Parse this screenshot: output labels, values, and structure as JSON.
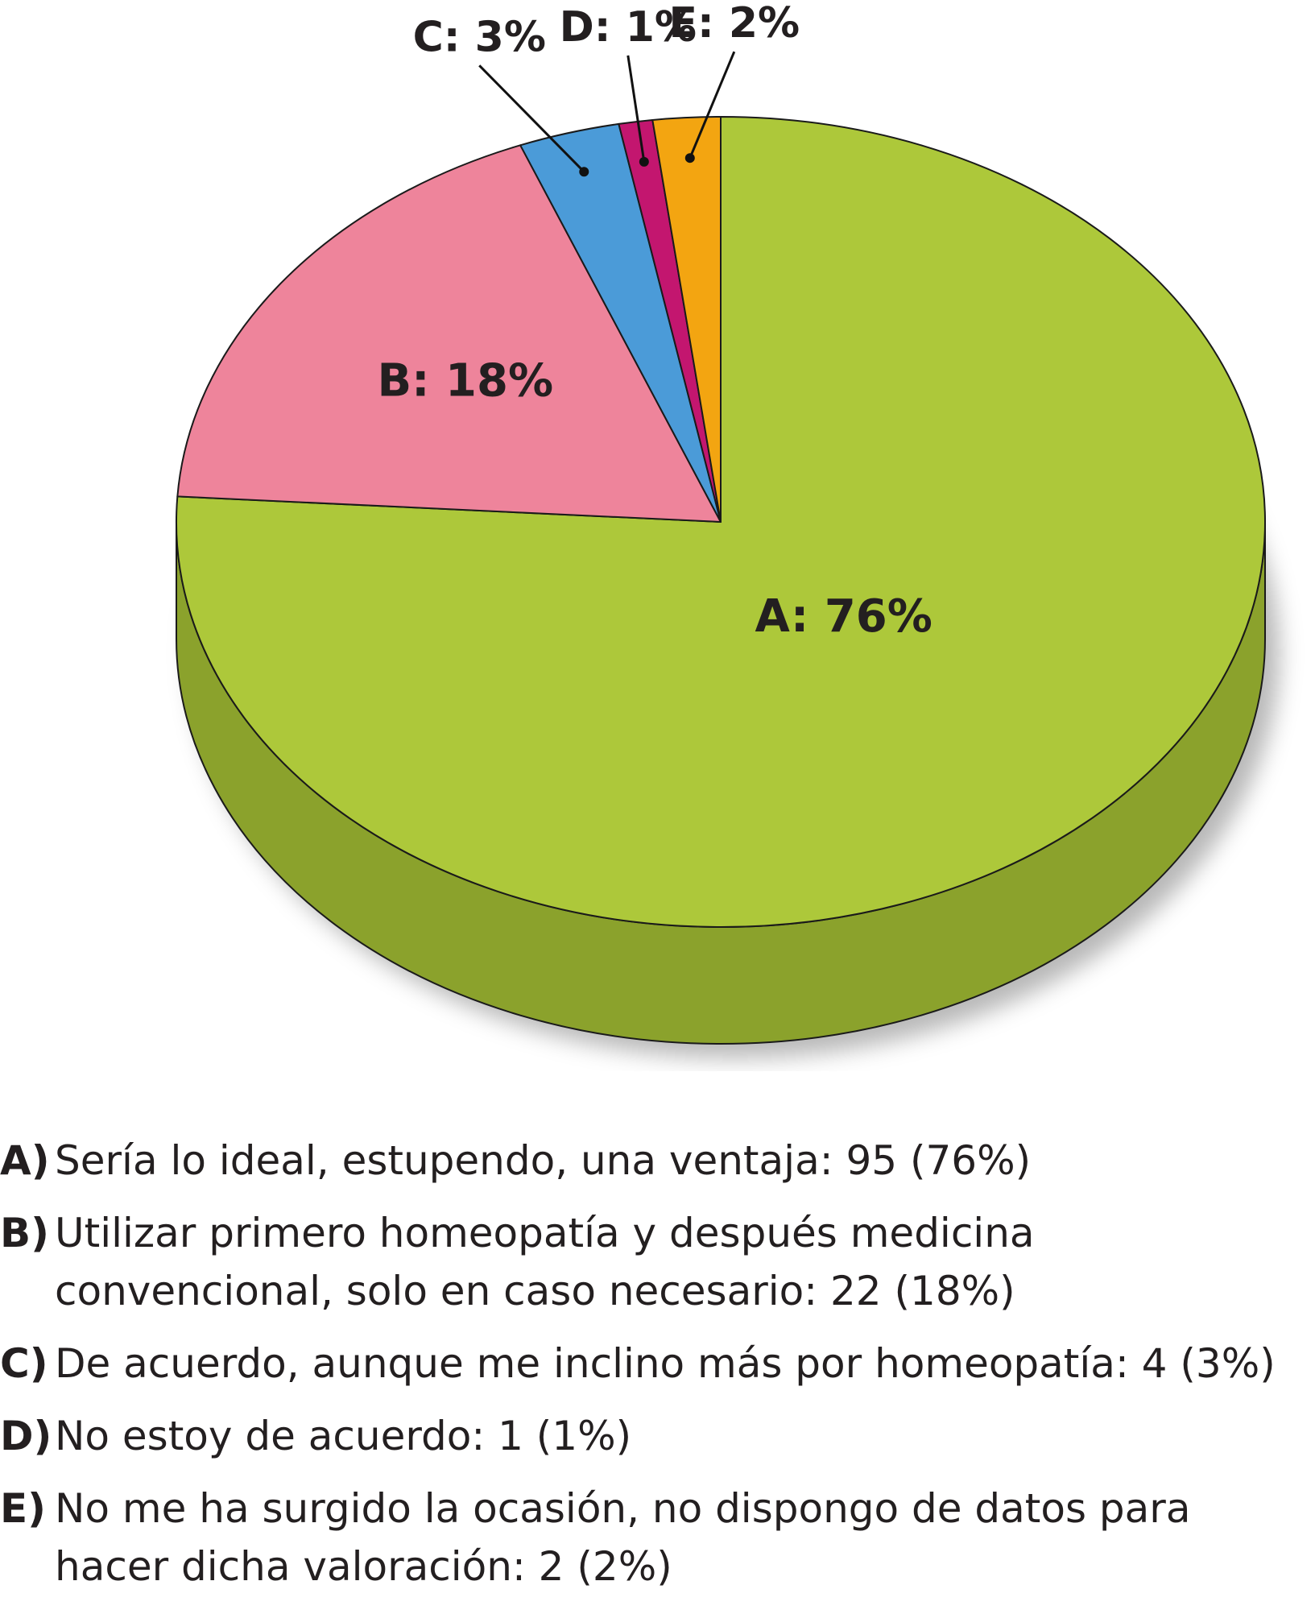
{
  "chart_data": {
    "type": "pie",
    "title": "",
    "slices": [
      {
        "key": "A",
        "label": "A: 76%",
        "value": 76,
        "color": "#adc83a"
      },
      {
        "key": "B",
        "label": "B: 18%",
        "value": 18,
        "color": "#ee849b"
      },
      {
        "key": "C",
        "label": "C: 3%",
        "value": 3,
        "color": "#4b9bd8"
      },
      {
        "key": "D",
        "label": "D: 1%",
        "value": 1,
        "color": "#c3166f"
      },
      {
        "key": "E",
        "label": "E: 2%",
        "value": 2,
        "color": "#f3a511"
      }
    ],
    "side_color": "#8ba22c",
    "legend": [
      {
        "key": "A)",
        "text": "Sería lo ideal, estupendo, una ventaja: 95 (76%)"
      },
      {
        "key": "B)",
        "text": "Utilizar primero homeopatía y después medicina convencional, solo en caso necesario: 22 (18%)"
      },
      {
        "key": "C)",
        "text": "De acuerdo, aunque me inclino más por homeopatía: 4 (3%)"
      },
      {
        "key": "D)",
        "text": "No estoy de acuerdo: 1 (1%)"
      },
      {
        "key": "E)",
        "text": "No me ha surgido la ocasión, no dispongo de datos para hacer dicha valoración: 2 (2%)"
      }
    ]
  }
}
